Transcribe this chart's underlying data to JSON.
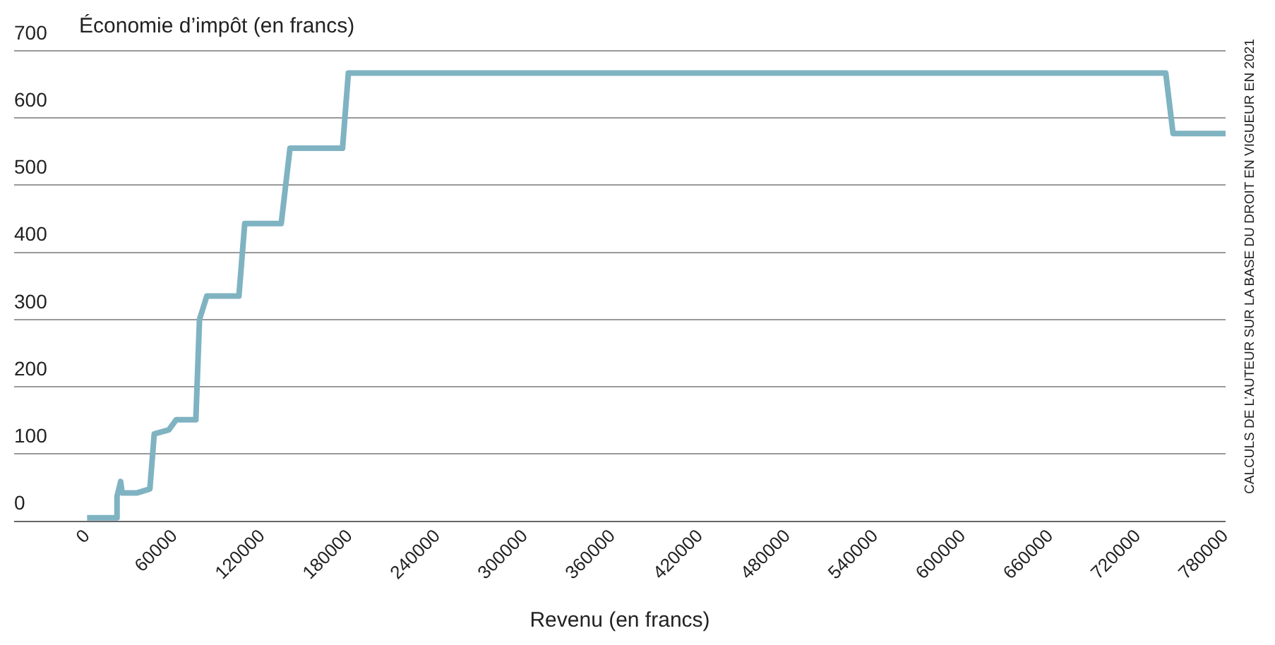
{
  "chart_data": {
    "type": "line",
    "ylabel": "Économie d’impôt (en francs)",
    "xlabel": "Revenu (en francs)",
    "annotations": [
      "CALCULS DE L’AUTEUR SUR LA BASE DU DROIT EN VIGUEUR EN 2021"
    ],
    "series": [
      {
        "color": "#7fb3c2",
        "x": [
          0,
          20000,
          20500,
          23000,
          24000,
          34000,
          43000,
          46000,
          56000,
          61000,
          74500,
          77000,
          82000,
          104000,
          108000,
          133000,
          139000,
          175000,
          179000,
          739000,
          744000,
          780000
        ],
        "values": [
          5,
          5,
          37,
          59,
          42,
          42,
          48,
          130,
          136,
          151,
          151,
          300,
          335,
          335,
          443,
          443,
          555,
          555,
          667,
          667,
          577,
          577
        ]
      }
    ],
    "xlim": [
      -50000,
      780000
    ],
    "xticks": [
      0,
      60000,
      120000,
      180000,
      240000,
      300000,
      360000,
      420000,
      480000,
      540000,
      600000,
      660000,
      720000,
      780000
    ],
    "ylim": [
      0,
      700
    ],
    "yticks": [
      0,
      100,
      200,
      300,
      400,
      500,
      600,
      700
    ],
    "grid": "y",
    "legend": false,
    "marker": "none",
    "line_style": "solid"
  }
}
